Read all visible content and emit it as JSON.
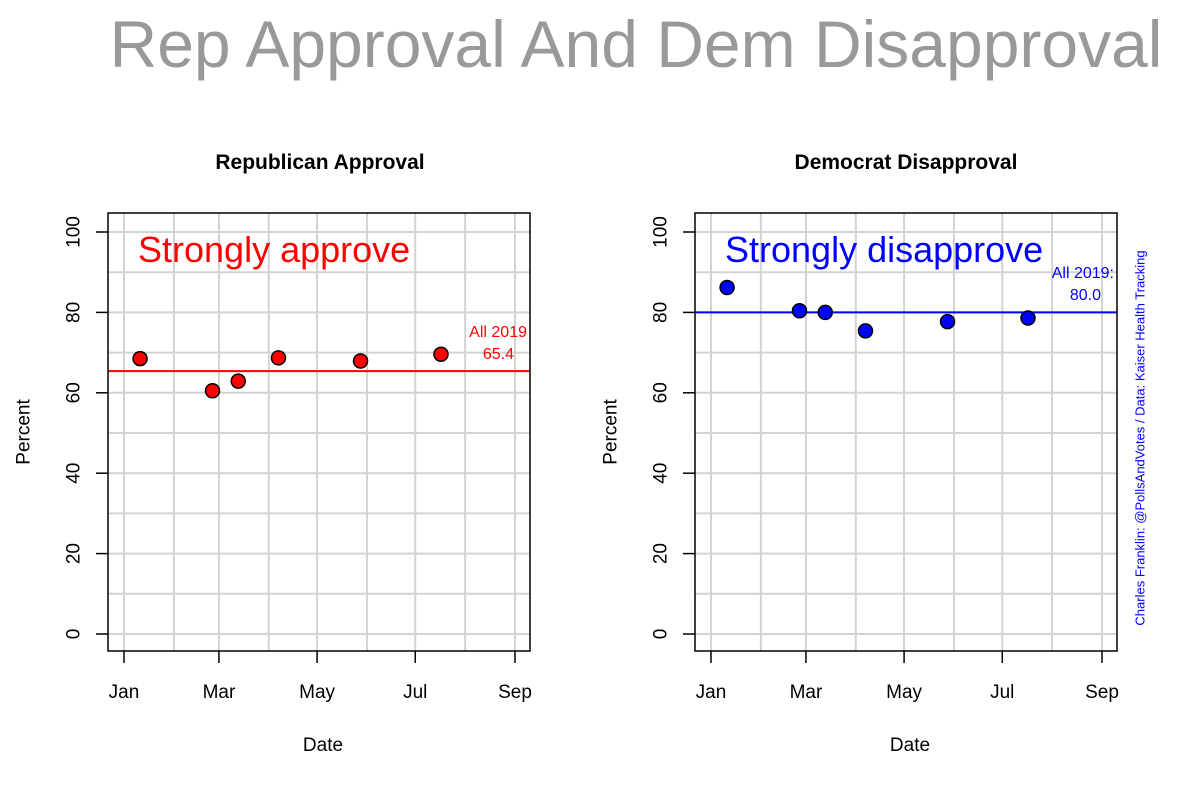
{
  "main_title": "Rep Approval And Dem Disapproval",
  "credit": "Charles Franklin: @PollsAndVotes / Data: Kaiser Health Tracking",
  "chart_data": [
    {
      "type": "scatter",
      "title": "Republican Approval",
      "xlabel": "Date",
      "ylabel": "Percent",
      "ylim": [
        0,
        100
      ],
      "yticks": [
        "0",
        "20",
        "40",
        "60",
        "80",
        "100"
      ],
      "xlim": [
        "2019-01-01",
        "2019-09-01"
      ],
      "xticks": [
        {
          "date": "2019-01-01",
          "label": "Jan"
        },
        {
          "date": "2019-03-01",
          "label": "Mar"
        },
        {
          "date": "2019-05-01",
          "label": "May"
        },
        {
          "date": "2019-07-01",
          "label": "Jul"
        },
        {
          "date": "2019-09-01",
          "label": "Sep"
        }
      ],
      "grid": true,
      "annotation": "Strongly approve",
      "color": "#ff0000",
      "points": [
        {
          "x": "2019-01-11",
          "y": 68.5
        },
        {
          "x": "2019-02-25",
          "y": 60.5
        },
        {
          "x": "2019-03-13",
          "y": 62.9
        },
        {
          "x": "2019-04-07",
          "y": 68.7
        },
        {
          "x": "2019-05-28",
          "y": 67.9
        },
        {
          "x": "2019-07-17",
          "y": 69.6
        }
      ],
      "reference_line": {
        "label": "All 2019",
        "value": "65.4",
        "y": 65.4
      }
    },
    {
      "type": "scatter",
      "title": "Democrat Disapproval",
      "xlabel": "Date",
      "ylabel": "Percent",
      "ylim": [
        0,
        100
      ],
      "yticks": [
        "0",
        "20",
        "40",
        "60",
        "80",
        "100"
      ],
      "xlim": [
        "2019-01-01",
        "2019-09-01"
      ],
      "xticks": [
        {
          "date": "2019-01-01",
          "label": "Jan"
        },
        {
          "date": "2019-03-01",
          "label": "Mar"
        },
        {
          "date": "2019-05-01",
          "label": "May"
        },
        {
          "date": "2019-07-01",
          "label": "Jul"
        },
        {
          "date": "2019-09-01",
          "label": "Sep"
        }
      ],
      "grid": true,
      "annotation": "Strongly disapprove",
      "color": "#0000ff",
      "points": [
        {
          "x": "2019-01-11",
          "y": 86.2
        },
        {
          "x": "2019-02-25",
          "y": 80.4
        },
        {
          "x": "2019-03-13",
          "y": 80.0
        },
        {
          "x": "2019-04-07",
          "y": 75.4
        },
        {
          "x": "2019-05-28",
          "y": 77.7
        },
        {
          "x": "2019-07-17",
          "y": 78.6
        }
      ],
      "reference_line": {
        "label": "All 2019:",
        "value": "80.0",
        "y": 80.0
      }
    }
  ]
}
